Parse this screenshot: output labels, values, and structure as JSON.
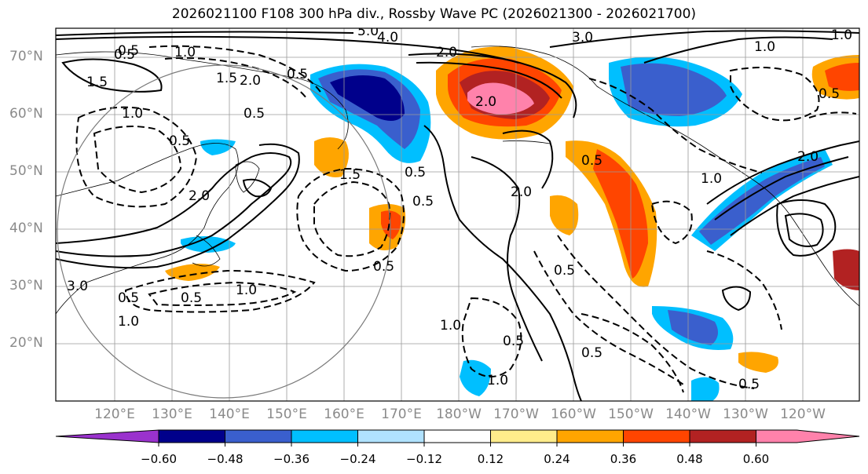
{
  "title": "2026021100 F108 300 hPa div., Rossby Wave PC (2026021300 - 2026021700)",
  "lat_labels": [
    "70°N",
    "60°N",
    "50°N",
    "40°N",
    "30°N",
    "20°N"
  ],
  "lon_labels": [
    "120°E",
    "130°E",
    "140°E",
    "150°E",
    "160°E",
    "170°E",
    "180°W",
    "170°W",
    "160°W",
    "150°W",
    "140°W",
    "130°W",
    "120°W"
  ],
  "colorbar": {
    "ticks": [
      "−0.60",
      "−0.48",
      "−0.36",
      "−0.24",
      "−0.12",
      "0.12",
      "0.24",
      "0.36",
      "0.48",
      "0.60"
    ],
    "colors": [
      "#9a32cd",
      "#00008b",
      "#3a5fcd",
      "#00bfff",
      "#b0e2ff",
      "#ffffff",
      "#ffec8b",
      "#ffa500",
      "#ff4500",
      "#b22222",
      "#ff82ab",
      "#ff82ab"
    ]
  },
  "contour_labels": [
    "5.0",
    "4.0",
    "3.0",
    "2.0",
    "2.0",
    "2.0",
    "1.0",
    "1.0",
    "1.0",
    "1.0",
    "1.0",
    "1.0",
    "1.5",
    "1.5",
    "2.0",
    "2.0",
    "0.5",
    "0.5",
    "0.5",
    "0.5",
    "0.5",
    "0.5",
    "0.5",
    "0.5",
    "0.5",
    "1.0",
    "1.0",
    "0.5",
    "0.5",
    "2.0",
    "1.0",
    "3.0",
    "0.5",
    "0.5",
    "1.5",
    "0.5",
    "0.5",
    "0.5"
  ]
}
